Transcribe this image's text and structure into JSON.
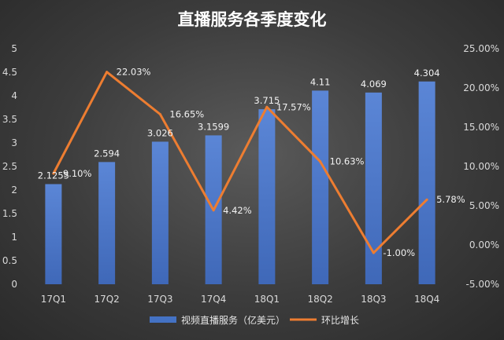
{
  "chart_data": {
    "type": "bar",
    "title": "直播服务各季度变化",
    "categories": [
      "17Q1",
      "17Q2",
      "17Q3",
      "17Q4",
      "18Q1",
      "18Q2",
      "18Q3",
      "18Q4"
    ],
    "series": [
      {
        "name": "视频直播服务（亿美元）",
        "type": "bar",
        "axis": "left",
        "values": [
          2.1255,
          2.594,
          3.026,
          3.1599,
          3.715,
          4.11,
          4.069,
          4.304
        ],
        "labels": [
          "2.1255",
          "2.594",
          "3.026",
          "3.1599",
          "3.715",
          "4.11",
          "4.069",
          "4.304"
        ],
        "color": "#4472C4"
      },
      {
        "name": "环比增长",
        "type": "line",
        "axis": "right",
        "values": [
          9.1,
          22.03,
          16.65,
          4.42,
          17.57,
          10.63,
          -1.0,
          5.78
        ],
        "labels": [
          "9.10%",
          "22.03%",
          "16.65%",
          "4.42%",
          "17.57%",
          "10.63%",
          "-1.00%",
          "5.78%"
        ],
        "color": "#ED7D31"
      }
    ],
    "y_left": {
      "min": 0,
      "max": 5,
      "step": 0.5,
      "ticks": [
        "0",
        "0.5",
        "1",
        "1.5",
        "2",
        "2.5",
        "3",
        "3.5",
        "4",
        "4.5",
        "5"
      ]
    },
    "y_right": {
      "min": -5,
      "max": 25,
      "step": 5,
      "ticks": [
        "-5.00%",
        "0.00%",
        "5.00%",
        "10.00%",
        "15.00%",
        "20.00%",
        "25.00%"
      ]
    },
    "grid": false,
    "legend_position": "bottom"
  }
}
